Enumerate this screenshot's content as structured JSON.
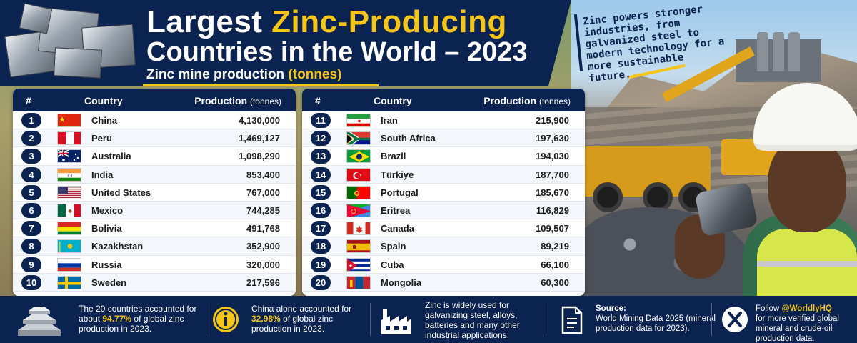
{
  "header": {
    "title_part1": "Largest ",
    "title_highlight": "Zinc-Producing",
    "title_line2": "Countries in the World – 2023",
    "subtitle_main": "Zinc mine production ",
    "subtitle_highlight": "(tonnes)"
  },
  "tagline": "Zinc powers stronger industries, from galvanized steel to modern technology for a more sustainable future.",
  "table": {
    "col_rank": "#",
    "col_country": "Country",
    "col_production": "Production",
    "col_unit": "(tonnes)"
  },
  "rows_left": [
    {
      "rank": "1",
      "country": "China",
      "production": "4,130,000",
      "flag": "cn"
    },
    {
      "rank": "2",
      "country": "Peru",
      "production": "1,469,127",
      "flag": "pe"
    },
    {
      "rank": "3",
      "country": "Australia",
      "production": "1,098,290",
      "flag": "au"
    },
    {
      "rank": "4",
      "country": "India",
      "production": "853,400",
      "flag": "in"
    },
    {
      "rank": "5",
      "country": "United States",
      "production": "767,000",
      "flag": "us"
    },
    {
      "rank": "6",
      "country": "Mexico",
      "production": "744,285",
      "flag": "mx"
    },
    {
      "rank": "7",
      "country": "Bolivia",
      "production": "491,768",
      "flag": "bo"
    },
    {
      "rank": "8",
      "country": "Kazakhstan",
      "production": "352,900",
      "flag": "kz"
    },
    {
      "rank": "9",
      "country": "Russia",
      "production": "320,000",
      "flag": "ru"
    },
    {
      "rank": "10",
      "country": "Sweden",
      "production": "217,596",
      "flag": "se"
    }
  ],
  "rows_right": [
    {
      "rank": "11",
      "country": "Iran",
      "production": "215,900",
      "flag": "ir"
    },
    {
      "rank": "12",
      "country": "South Africa",
      "production": "197,630",
      "flag": "za"
    },
    {
      "rank": "13",
      "country": "Brazil",
      "production": "194,030",
      "flag": "br"
    },
    {
      "rank": "14",
      "country": "Türkiye",
      "production": "187,700",
      "flag": "tr"
    },
    {
      "rank": "15",
      "country": "Portugal",
      "production": "185,670",
      "flag": "pt"
    },
    {
      "rank": "16",
      "country": "Eritrea",
      "production": "116,829",
      "flag": "er"
    },
    {
      "rank": "17",
      "country": "Canada",
      "production": "109,507",
      "flag": "ca"
    },
    {
      "rank": "18",
      "country": "Spain",
      "production": "89,219",
      "flag": "es"
    },
    {
      "rank": "19",
      "country": "Cuba",
      "production": "66,100",
      "flag": "cu"
    },
    {
      "rank": "20",
      "country": "Mongolia",
      "production": "60,300",
      "flag": "mn"
    }
  ],
  "footer": {
    "fact1_a": "The 20 countries accounted for about ",
    "fact1_hl": "94.77%",
    "fact1_b": " of global zinc production in 2023.",
    "fact2_a": "China alone accounted for ",
    "fact2_hl": "32.98%",
    "fact2_b": " of global zinc production in 2023.",
    "fact3": "Zinc is widely used for galvanizing steel, alloys, batteries and many other industrial applications.",
    "source_label": "Source:",
    "source_text": "World Mining Data 2025 (mineral production data for 2023).",
    "follow_a": "Follow ",
    "follow_handle": "@WorldlyHQ",
    "follow_b": "for more verified global mineral and crude-oil production data."
  },
  "colors": {
    "navy": "#0b2350",
    "gold": "#f5c518"
  },
  "icons": [
    "zinc-ingots-icon",
    "info-icon",
    "factory-icon",
    "document-icon",
    "x-logo-icon"
  ]
}
